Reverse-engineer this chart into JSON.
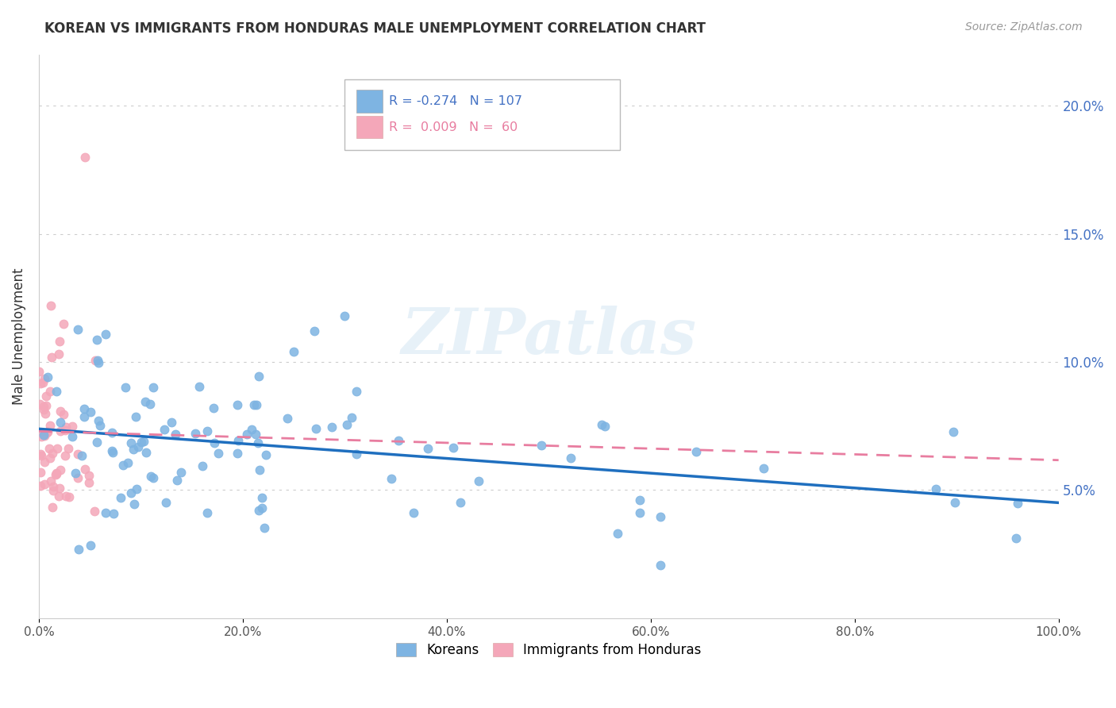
{
  "title": "KOREAN VS IMMIGRANTS FROM HONDURAS MALE UNEMPLOYMENT CORRELATION CHART",
  "source": "Source: ZipAtlas.com",
  "ylabel": "Male Unemployment",
  "xlim": [
    0.0,
    1.0
  ],
  "ylim": [
    0.0,
    0.22
  ],
  "background_color": "#ffffff",
  "watermark": "ZIPatlas",
  "korean_color": "#7EB4E2",
  "honduras_color": "#F4A7B9",
  "korean_line_color": "#1F6FBF",
  "honduras_line_color": "#E87DA0",
  "korean_R": -0.274,
  "korean_N": 107,
  "honduras_R": 0.009,
  "honduras_N": 60,
  "legend_label_korean": "Koreans",
  "legend_label_honduras": "Immigrants from Honduras"
}
